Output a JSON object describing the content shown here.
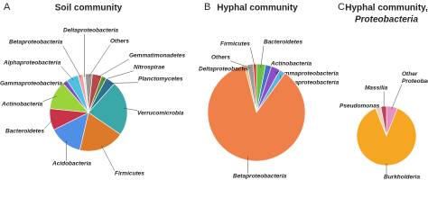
{
  "chart_data": [
    {
      "type": "pie",
      "panel": "A",
      "title": "Soil community",
      "categories": [
        "Others",
        "Gemmatimonadetes",
        "Nitrospirae",
        "Planctomycetes",
        "Verrucomicrobia",
        "Firmicutes",
        "Acidobacteria",
        "Bacteroidetes",
        "Actinobacteria",
        "Gammaproteobacteria",
        "Alphaproteobacteria",
        "Betaproteobacteria",
        "Deltaproteobacteria"
      ],
      "values": [
        3,
        4,
        2,
        4,
        23,
        19,
        14,
        9,
        12,
        2,
        5,
        2,
        1
      ],
      "colors": [
        "#9a9a9a",
        "#b84848",
        "#5a8f3a",
        "#2e6e8f",
        "#3aa8a8",
        "#dc7a2a",
        "#4f8fe6",
        "#c8334a",
        "#9bd33c",
        "#7b4fc9",
        "#4fc0e0",
        "#f0a0a0",
        "#e6e6e6"
      ]
    },
    {
      "type": "pie",
      "panel": "B",
      "title": "Hyphal community",
      "categories": [
        "Bacteroidetes",
        "Actinobacteria",
        "Gammaproteobacteria",
        "Alphaproteobacteria",
        "Betaproteobacteria",
        "Deltaproteobacteria",
        "Others",
        "Firmicutes"
      ],
      "values": [
        3,
        2,
        3,
        2,
        86,
        1,
        2,
        1
      ],
      "colors": [
        "#6cc04a",
        "#4a70c8",
        "#8b4fc9",
        "#60b0e0",
        "#f0804a",
        "#f4c070",
        "#9a9a9a",
        "#d8402a"
      ]
    },
    {
      "type": "pie",
      "panel": "C",
      "title": "Hyphal community,",
      "subtitle": "Proteobacteria",
      "categories": [
        "Other Proteobacteria",
        "Burkholderia",
        "Pseudomonas",
        "Massilia"
      ],
      "values": [
        6,
        88,
        3,
        3
      ],
      "colors": [
        "#e890c0",
        "#f5a623",
        "#ecd6b8",
        "#c04060"
      ]
    }
  ]
}
